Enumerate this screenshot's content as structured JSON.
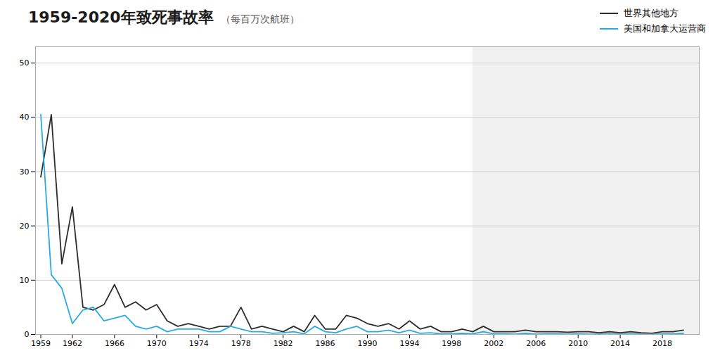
{
  "chart_data": {
    "type": "line",
    "title": "1959-2020年致死事故率",
    "subtitle": "（每百万次航班）",
    "x": [
      1959,
      1960,
      1961,
      1962,
      1963,
      1964,
      1965,
      1966,
      1967,
      1968,
      1969,
      1970,
      1971,
      1972,
      1973,
      1974,
      1975,
      1976,
      1977,
      1978,
      1979,
      1980,
      1981,
      1982,
      1983,
      1984,
      1985,
      1986,
      1987,
      1988,
      1989,
      1990,
      1991,
      1992,
      1993,
      1994,
      1995,
      1996,
      1997,
      1998,
      1999,
      2000,
      2001,
      2002,
      2003,
      2004,
      2005,
      2006,
      2007,
      2008,
      2009,
      2010,
      2011,
      2012,
      2013,
      2014,
      2015,
      2016,
      2017,
      2018,
      2019,
      2020
    ],
    "series": [
      {
        "name": "世界其他地方",
        "color": "#2d2d2d",
        "values": [
          29.0,
          40.5,
          13.0,
          23.5,
          5.0,
          4.5,
          5.5,
          9.2,
          5.0,
          6.0,
          4.5,
          5.5,
          2.5,
          1.5,
          2.0,
          1.5,
          1.0,
          1.5,
          1.5,
          5.0,
          1.0,
          1.5,
          1.0,
          0.5,
          1.5,
          0.5,
          3.5,
          1.0,
          1.0,
          3.5,
          3.0,
          2.0,
          1.5,
          2.0,
          1.0,
          2.5,
          1.0,
          1.5,
          0.5,
          0.5,
          1.0,
          0.5,
          1.5,
          0.5,
          0.5,
          0.5,
          0.8,
          0.5,
          0.5,
          0.5,
          0.4,
          0.5,
          0.5,
          0.3,
          0.5,
          0.3,
          0.5,
          0.3,
          0.2,
          0.5,
          0.5,
          0.8
        ]
      },
      {
        "name": "美国和加拿大运营商",
        "color": "#29abe2",
        "values": [
          40.5,
          11.0,
          8.5,
          2.0,
          4.5,
          5.0,
          2.5,
          3.0,
          3.5,
          1.5,
          1.0,
          1.5,
          0.5,
          1.0,
          1.0,
          1.0,
          0.5,
          0.5,
          1.5,
          1.0,
          0.5,
          0.5,
          0.2,
          0.3,
          0.5,
          0.1,
          1.5,
          0.5,
          0.3,
          1.0,
          1.5,
          0.5,
          0.5,
          0.8,
          0.3,
          0.8,
          0.2,
          0.3,
          0.1,
          0.1,
          0.2,
          0.1,
          0.5,
          0.1,
          0.1,
          0.05,
          0.2,
          0.05,
          0.1,
          0.1,
          0.05,
          0.1,
          0.05,
          0.05,
          0.1,
          0.05,
          0.1,
          0.05,
          0.02,
          0.1,
          0.1,
          0.2
        ]
      }
    ],
    "shade_start": 2000,
    "xlim": [
      1958.5,
      2021.5
    ],
    "xticks": [
      1959,
      1962,
      1966,
      1970,
      1974,
      1978,
      1982,
      1986,
      1990,
      1994,
      1998,
      2002,
      2006,
      2010,
      2014,
      2018
    ],
    "ylim": [
      0,
      53
    ],
    "yticks": [
      0,
      10,
      20,
      30,
      40,
      50
    ],
    "grid": true,
    "legend": "upper right"
  }
}
